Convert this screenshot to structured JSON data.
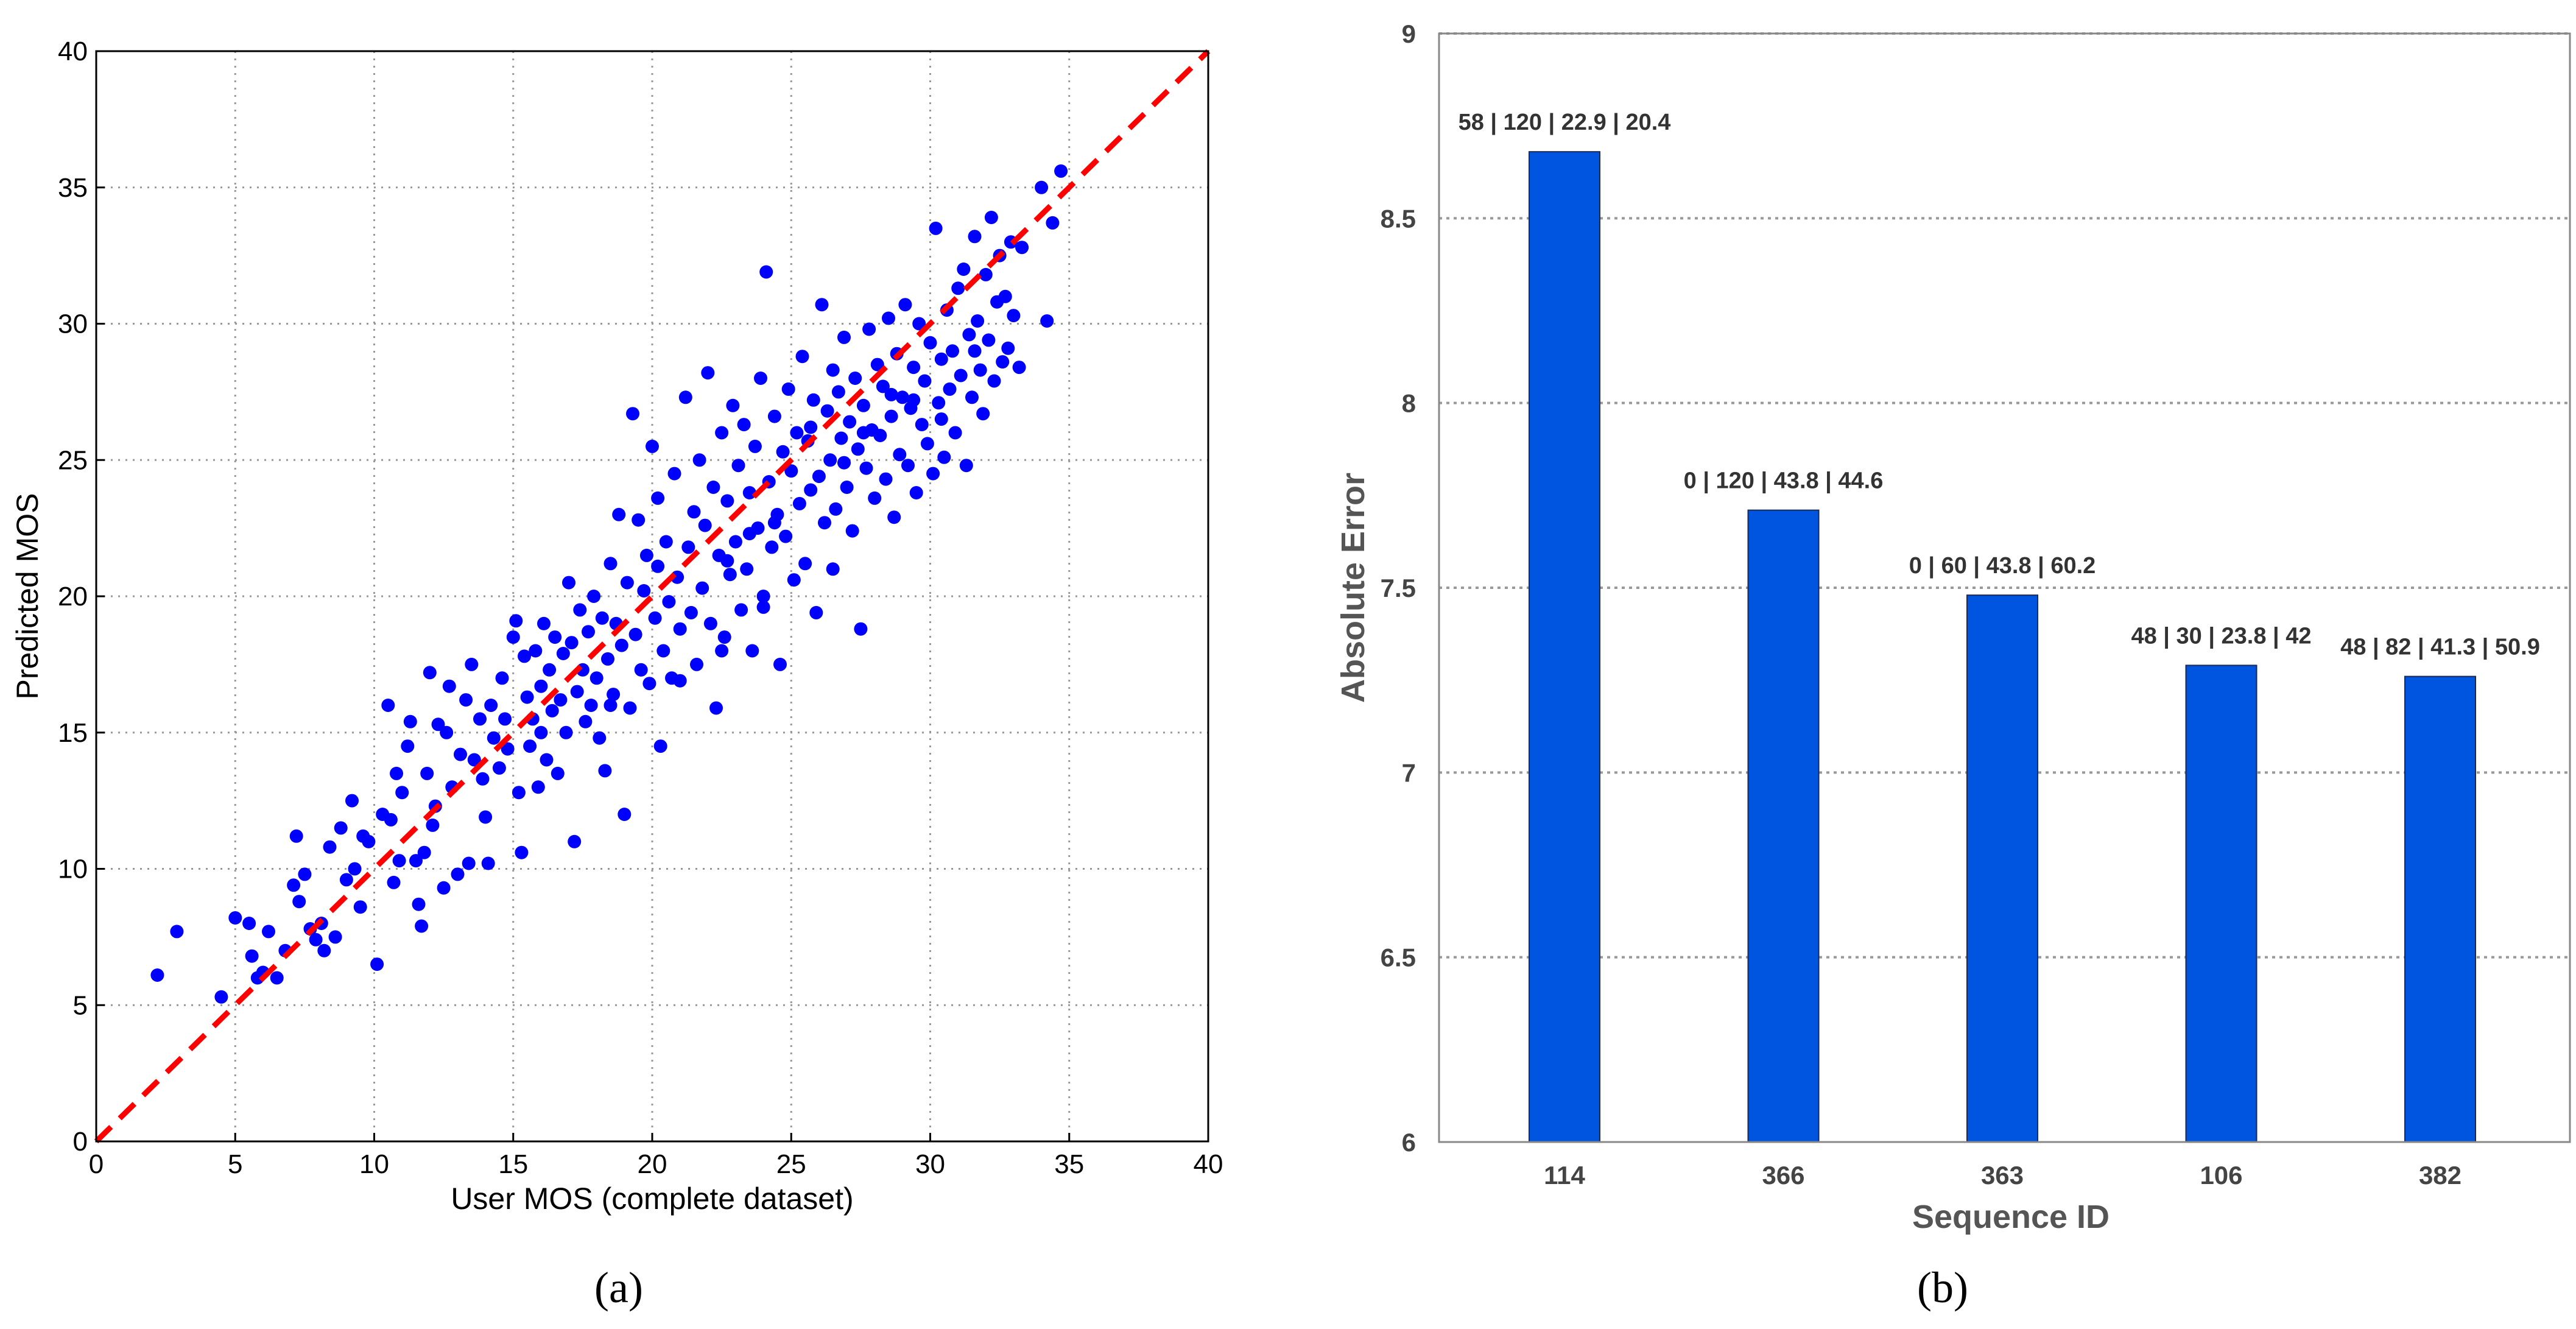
{
  "chart_data": [
    {
      "type": "scatter",
      "panel_label": "(a)",
      "xlabel": "User MOS (complete dataset)",
      "ylabel": "Predicted MOS",
      "xlim": [
        0,
        40
      ],
      "ylim": [
        0,
        40
      ],
      "xticks": [
        0,
        5,
        10,
        15,
        20,
        25,
        30,
        35,
        40
      ],
      "yticks": [
        0,
        5,
        10,
        15,
        20,
        25,
        30,
        35,
        40
      ],
      "grid": true,
      "point_color": "#0000ff",
      "reference_line": {
        "style": "dashed",
        "color": "#ff0000",
        "from": [
          0,
          0
        ],
        "to": [
          40,
          40
        ]
      },
      "points": [
        [
          2.2,
          6.1
        ],
        [
          2.9,
          7.7
        ],
        [
          4.5,
          5.3
        ],
        [
          5.0,
          8.2
        ],
        [
          5.5,
          8.0
        ],
        [
          5.6,
          6.8
        ],
        [
          5.8,
          6.0
        ],
        [
          6.0,
          6.2
        ],
        [
          6.2,
          7.7
        ],
        [
          6.5,
          6.0
        ],
        [
          6.8,
          7.0
        ],
        [
          7.1,
          9.4
        ],
        [
          7.2,
          11.2
        ],
        [
          7.3,
          8.8
        ],
        [
          7.5,
          9.8
        ],
        [
          7.7,
          7.8
        ],
        [
          7.9,
          7.4
        ],
        [
          8.1,
          8.0
        ],
        [
          8.2,
          7.0
        ],
        [
          8.4,
          10.8
        ],
        [
          8.6,
          7.5
        ],
        [
          8.8,
          11.5
        ],
        [
          9.0,
          9.6
        ],
        [
          9.2,
          12.5
        ],
        [
          9.3,
          10.0
        ],
        [
          9.5,
          8.6
        ],
        [
          9.6,
          11.2
        ],
        [
          9.8,
          11.0
        ],
        [
          10.1,
          6.5
        ],
        [
          10.3,
          12.0
        ],
        [
          10.5,
          16.0
        ],
        [
          10.6,
          11.8
        ],
        [
          10.7,
          9.5
        ],
        [
          10.8,
          13.5
        ],
        [
          10.9,
          10.3
        ],
        [
          11.0,
          12.8
        ],
        [
          11.2,
          14.5
        ],
        [
          11.3,
          15.4
        ],
        [
          11.5,
          10.3
        ],
        [
          11.6,
          8.7
        ],
        [
          11.7,
          7.9
        ],
        [
          11.8,
          10.6
        ],
        [
          11.9,
          13.5
        ],
        [
          12.0,
          17.2
        ],
        [
          12.1,
          11.6
        ],
        [
          12.2,
          12.3
        ],
        [
          12.3,
          15.3
        ],
        [
          12.5,
          9.3
        ],
        [
          12.6,
          15.0
        ],
        [
          12.7,
          16.7
        ],
        [
          12.8,
          13.0
        ],
        [
          13.0,
          9.8
        ],
        [
          13.1,
          14.2
        ],
        [
          13.3,
          16.2
        ],
        [
          13.4,
          10.2
        ],
        [
          13.5,
          17.5
        ],
        [
          13.6,
          14.0
        ],
        [
          13.8,
          15.5
        ],
        [
          13.9,
          13.3
        ],
        [
          14.0,
          11.9
        ],
        [
          14.1,
          10.2
        ],
        [
          14.2,
          16.0
        ],
        [
          14.3,
          14.8
        ],
        [
          14.5,
          13.7
        ],
        [
          14.6,
          17.0
        ],
        [
          14.7,
          15.5
        ],
        [
          14.8,
          14.4
        ],
        [
          15.0,
          18.5
        ],
        [
          15.1,
          19.1
        ],
        [
          15.2,
          12.8
        ],
        [
          15.3,
          10.6
        ],
        [
          15.4,
          17.8
        ],
        [
          15.5,
          16.3
        ],
        [
          15.6,
          14.5
        ],
        [
          15.7,
          15.5
        ],
        [
          15.8,
          18.0
        ],
        [
          15.9,
          13.0
        ],
        [
          16.0,
          16.7
        ],
        [
          16.1,
          19.0
        ],
        [
          16.2,
          14.0
        ],
        [
          16.3,
          17.3
        ],
        [
          16.4,
          15.8
        ],
        [
          16.5,
          18.5
        ],
        [
          16.6,
          13.5
        ],
        [
          16.7,
          16.2
        ],
        [
          16.8,
          17.9
        ],
        [
          16.9,
          15.0
        ],
        [
          17.0,
          20.5
        ],
        [
          17.1,
          18.3
        ],
        [
          17.2,
          11.0
        ],
        [
          17.3,
          16.5
        ],
        [
          17.4,
          19.5
        ],
        [
          17.5,
          17.3
        ],
        [
          17.6,
          15.4
        ],
        [
          17.7,
          18.7
        ],
        [
          17.8,
          16.0
        ],
        [
          17.9,
          20.0
        ],
        [
          18.0,
          17.0
        ],
        [
          18.1,
          14.8
        ],
        [
          18.2,
          19.2
        ],
        [
          18.3,
          13.6
        ],
        [
          18.4,
          17.7
        ],
        [
          18.5,
          21.2
        ],
        [
          18.6,
          16.4
        ],
        [
          18.7,
          19.0
        ],
        [
          18.8,
          23.0
        ],
        [
          18.9,
          18.2
        ],
        [
          19.0,
          12.0
        ],
        [
          19.1,
          20.5
        ],
        [
          19.2,
          15.9
        ],
        [
          19.3,
          26.7
        ],
        [
          19.4,
          18.6
        ],
        [
          19.5,
          22.8
        ],
        [
          19.6,
          17.3
        ],
        [
          19.7,
          20.2
        ],
        [
          19.8,
          21.5
        ],
        [
          19.9,
          16.8
        ],
        [
          20.0,
          25.5
        ],
        [
          20.1,
          19.2
        ],
        [
          20.2,
          23.6
        ],
        [
          20.3,
          14.5
        ],
        [
          20.4,
          18.0
        ],
        [
          20.5,
          22.0
        ],
        [
          20.6,
          19.8
        ],
        [
          20.7,
          17.0
        ],
        [
          20.8,
          24.5
        ],
        [
          20.9,
          20.7
        ],
        [
          21.0,
          18.8
        ],
        [
          21.2,
          27.3
        ],
        [
          21.3,
          21.8
        ],
        [
          21.4,
          19.4
        ],
        [
          21.5,
          23.1
        ],
        [
          21.6,
          17.5
        ],
        [
          21.7,
          25.0
        ],
        [
          21.8,
          20.3
        ],
        [
          21.9,
          22.6
        ],
        [
          22.0,
          28.2
        ],
        [
          22.1,
          19.0
        ],
        [
          22.2,
          24.0
        ],
        [
          22.3,
          15.9
        ],
        [
          22.4,
          21.5
        ],
        [
          22.5,
          26.0
        ],
        [
          22.6,
          18.5
        ],
        [
          22.7,
          23.5
        ],
        [
          22.8,
          20.8
        ],
        [
          22.9,
          27.0
        ],
        [
          23.0,
          22.0
        ],
        [
          23.1,
          24.8
        ],
        [
          23.2,
          19.5
        ],
        [
          23.3,
          26.3
        ],
        [
          23.4,
          21.0
        ],
        [
          23.5,
          23.8
        ],
        [
          23.6,
          18.0
        ],
        [
          23.7,
          25.5
        ],
        [
          23.8,
          22.5
        ],
        [
          23.9,
          28.0
        ],
        [
          24.0,
          20.0
        ],
        [
          24.1,
          31.9
        ],
        [
          24.2,
          24.2
        ],
        [
          24.3,
          21.8
        ],
        [
          24.4,
          26.6
        ],
        [
          24.5,
          23.0
        ],
        [
          24.6,
          17.5
        ],
        [
          24.7,
          25.3
        ],
        [
          24.8,
          22.2
        ],
        [
          24.9,
          27.6
        ],
        [
          25.0,
          24.6
        ],
        [
          25.1,
          20.6
        ],
        [
          25.2,
          26.0
        ],
        [
          25.3,
          23.4
        ],
        [
          25.4,
          28.8
        ],
        [
          25.5,
          21.2
        ],
        [
          25.6,
          25.7
        ],
        [
          25.7,
          23.9
        ],
        [
          25.8,
          27.2
        ],
        [
          25.9,
          19.4
        ],
        [
          26.0,
          24.4
        ],
        [
          26.1,
          30.7
        ],
        [
          26.2,
          22.7
        ],
        [
          26.3,
          26.8
        ],
        [
          26.4,
          25.0
        ],
        [
          26.5,
          28.3
        ],
        [
          26.6,
          23.2
        ],
        [
          26.7,
          27.5
        ],
        [
          26.8,
          25.8
        ],
        [
          26.9,
          29.5
        ],
        [
          27.0,
          24.0
        ],
        [
          27.1,
          26.4
        ],
        [
          27.2,
          22.4
        ],
        [
          27.3,
          28.0
        ],
        [
          27.4,
          25.4
        ],
        [
          27.5,
          18.8
        ],
        [
          27.6,
          27.0
        ],
        [
          27.7,
          24.7
        ],
        [
          27.8,
          29.8
        ],
        [
          27.9,
          26.1
        ],
        [
          28.0,
          23.6
        ],
        [
          28.1,
          28.5
        ],
        [
          28.2,
          25.9
        ],
        [
          28.3,
          27.7
        ],
        [
          28.4,
          24.3
        ],
        [
          28.5,
          30.2
        ],
        [
          28.6,
          26.6
        ],
        [
          28.7,
          22.9
        ],
        [
          28.8,
          28.9
        ],
        [
          28.9,
          25.2
        ],
        [
          29.0,
          27.3
        ],
        [
          29.1,
          30.7
        ],
        [
          29.2,
          24.8
        ],
        [
          29.3,
          26.9
        ],
        [
          29.4,
          28.4
        ],
        [
          29.5,
          23.8
        ],
        [
          29.6,
          30.0
        ],
        [
          29.7,
          26.3
        ],
        [
          29.8,
          27.9
        ],
        [
          29.9,
          25.6
        ],
        [
          30.0,
          29.3
        ],
        [
          30.1,
          24.5
        ],
        [
          30.2,
          33.5
        ],
        [
          30.3,
          27.1
        ],
        [
          30.4,
          28.7
        ],
        [
          30.5,
          25.1
        ],
        [
          30.6,
          30.5
        ],
        [
          30.7,
          27.6
        ],
        [
          30.8,
          29.0
        ],
        [
          30.9,
          26.0
        ],
        [
          31.0,
          31.3
        ],
        [
          31.1,
          28.1
        ],
        [
          31.2,
          32.0
        ],
        [
          31.3,
          24.8
        ],
        [
          31.4,
          29.6
        ],
        [
          31.5,
          27.3
        ],
        [
          31.6,
          33.2
        ],
        [
          31.7,
          30.1
        ],
        [
          31.8,
          28.3
        ],
        [
          31.9,
          26.7
        ],
        [
          32.0,
          31.8
        ],
        [
          32.1,
          29.4
        ],
        [
          32.2,
          33.9
        ],
        [
          32.3,
          27.9
        ],
        [
          32.4,
          30.8
        ],
        [
          32.5,
          32.5
        ],
        [
          32.6,
          28.6
        ],
        [
          32.7,
          31.0
        ],
        [
          32.8,
          29.1
        ],
        [
          32.9,
          33.0
        ],
        [
          33.0,
          30.3
        ],
        [
          33.2,
          28.4
        ],
        [
          33.3,
          32.8
        ],
        [
          34.0,
          35.0
        ],
        [
          34.2,
          30.1
        ],
        [
          34.4,
          33.7
        ],
        [
          34.7,
          35.6
        ],
        [
          23.5,
          22.3
        ],
        [
          26.5,
          21.0
        ],
        [
          22.5,
          18.0
        ],
        [
          20.2,
          21.1
        ],
        [
          18.5,
          16.0
        ],
        [
          16.0,
          15.0
        ],
        [
          21.0,
          16.9
        ],
        [
          24.0,
          19.6
        ],
        [
          25.7,
          26.2
        ],
        [
          27.6,
          26.0
        ],
        [
          29.4,
          27.2
        ],
        [
          30.4,
          26.5
        ],
        [
          31.6,
          29.0
        ],
        [
          28.6,
          27.4
        ],
        [
          26.9,
          24.9
        ],
        [
          24.4,
          22.7
        ],
        [
          22.7,
          21.3
        ]
      ]
    },
    {
      "type": "bar",
      "panel_label": "(b)",
      "xlabel": "Sequence ID",
      "ylabel": "Absolute Error",
      "categories": [
        "114",
        "366",
        "363",
        "106",
        "382"
      ],
      "values": [
        8.68,
        7.71,
        7.48,
        7.29,
        7.26
      ],
      "bar_labels": [
        "58 | 120 | 22.9 | 20.4",
        "0 | 120 | 43.8 | 44.6",
        "0 | 60 | 43.8 | 60.2",
        "48 | 30 | 23.8 | 42",
        "48 | 82 | 41.3 | 50.9"
      ],
      "ylim": [
        6,
        9
      ],
      "yticks": [
        "6",
        "6.5",
        "7",
        "7.5",
        "8",
        "8.5",
        "9"
      ],
      "grid": true,
      "bar_color": "#0055e0"
    }
  ]
}
